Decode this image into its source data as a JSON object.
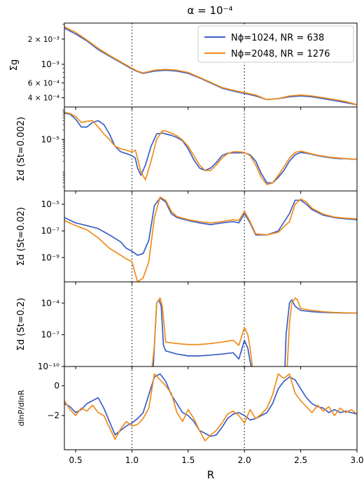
{
  "chart_data": {
    "type": "line",
    "title": "α = 10⁻⁴",
    "xlabel": "R",
    "xlim": [
      0.4,
      3.0
    ],
    "x_ticks": [
      0.5,
      1.0,
      1.5,
      2.0,
      2.5,
      3.0
    ],
    "x_tick_labels": [
      "0.5",
      "1.0",
      "1.5",
      "2.0",
      "2.5",
      "3.0"
    ],
    "vertical_lines": [
      1.0,
      2.0
    ],
    "legend": {
      "placement": "top-right",
      "entries": [
        "Nϕ=1024, NR = 638",
        "Nϕ=2048, NR = 1276"
      ],
      "colors": [
        "#3a5ec8",
        "#f08c1a"
      ]
    },
    "panels": [
      {
        "ylabel": "Σg",
        "yscale": "log",
        "ylim": [
          0.00031,
          0.0031
        ],
        "y_ticks": [
          0.0004,
          0.0006,
          0.001,
          0.002
        ],
        "y_tick_labels": [
          "4 × 10⁻⁴",
          "6 × 10⁻⁴",
          "10⁻³",
          "2 × 10⁻³"
        ],
        "series": [
          {
            "x": [
              0.4,
              0.5,
              0.6,
              0.7,
              0.8,
              0.9,
              1.0,
              1.05,
              1.1,
              1.2,
              1.3,
              1.4,
              1.5,
              1.6,
              1.7,
              1.8,
              1.9,
              2.0,
              2.1,
              2.2,
              2.3,
              2.4,
              2.5,
              2.6,
              2.7,
              2.8,
              2.9,
              3.0
            ],
            "y": [
              0.0027,
              0.0023,
              0.0019,
              0.0015,
              0.00125,
              0.00105,
              0.00088,
              0.00082,
              0.00078,
              0.00083,
              0.00085,
              0.00083,
              0.00078,
              0.00069,
              0.0006,
              0.00052,
              0.00048,
              0.00045,
              0.00042,
              0.00038,
              0.00039,
              0.00041,
              0.00042,
              0.00041,
              0.00039,
              0.00037,
              0.00035,
              0.00033
            ]
          },
          {
            "x": [
              0.4,
              0.5,
              0.6,
              0.7,
              0.8,
              0.9,
              1.0,
              1.05,
              1.1,
              1.2,
              1.3,
              1.4,
              1.5,
              1.6,
              1.7,
              1.8,
              1.9,
              2.0,
              2.1,
              2.2,
              2.3,
              2.4,
              2.5,
              2.6,
              2.7,
              2.8,
              2.9,
              3.0
            ],
            "y": [
              0.0028,
              0.0024,
              0.00195,
              0.00155,
              0.00128,
              0.00107,
              0.0009,
              0.00083,
              0.00079,
              0.00085,
              0.00087,
              0.00085,
              0.0008,
              0.0007,
              0.00061,
              0.00053,
              0.00049,
              0.00046,
              0.00043,
              0.00038,
              0.00039,
              0.00042,
              0.00043,
              0.00042,
              0.0004,
              0.00038,
              0.00036,
              0.00033
            ]
          }
        ]
      },
      {
        "ylabel": "Σd (St=0.002)",
        "yscale": "log",
        "ylim": [
          2.2e-07,
          0.00011
        ],
        "y_ticks": [
          1e-05
        ],
        "y_tick_labels": [
          "10⁻⁵"
        ],
        "series": [
          {
            "x": [
              0.4,
              0.45,
              0.5,
              0.55,
              0.6,
              0.65,
              0.7,
              0.75,
              0.8,
              0.85,
              0.9,
              0.95,
              1.0,
              1.03,
              1.05,
              1.08,
              1.12,
              1.17,
              1.22,
              1.27,
              1.3,
              1.35,
              1.4,
              1.45,
              1.5,
              1.55,
              1.6,
              1.65,
              1.7,
              1.75,
              1.8,
              1.85,
              1.9,
              1.95,
              2.0,
              2.05,
              2.1,
              2.15,
              2.2,
              2.25,
              2.3,
              2.35,
              2.4,
              2.45,
              2.5,
              2.55,
              2.6,
              2.65,
              2.7,
              2.75,
              2.8,
              2.85,
              2.9,
              2.95,
              3.0
            ],
            "y": [
              7e-05,
              6.5e-05,
              4.5e-05,
              2.5e-05,
              2.5e-05,
              3.5e-05,
              4e-05,
              3e-05,
              1.5e-05,
              6e-06,
              4e-06,
              3.5e-06,
              3e-06,
              2.5e-06,
              1.2e-06,
              7e-07,
              1.5e-06,
              6e-06,
              1.5e-05,
              1.6e-05,
              1.5e-05,
              1.35e-05,
              1.15e-05,
              9e-06,
              5e-06,
              2.2e-06,
              1.2e-06,
              1e-06,
              1.2e-06,
              1.8e-06,
              3e-06,
              3.6e-06,
              3.7e-06,
              3.7e-06,
              3.7e-06,
              3.2e-06,
              2e-06,
              8e-07,
              4e-07,
              4e-07,
              6e-07,
              1e-06,
              2e-06,
              3.2e-06,
              3.8e-06,
              3.6e-06,
              3.3e-06,
              3e-06,
              2.8e-06,
              2.6e-06,
              2.5e-06,
              2.4e-06,
              2.4e-06,
              2.3e-06,
              2.3e-06
            ]
          },
          {
            "x": [
              0.4,
              0.45,
              0.5,
              0.55,
              0.6,
              0.65,
              0.7,
              0.75,
              0.8,
              0.85,
              0.9,
              0.95,
              1.0,
              1.03,
              1.05,
              1.08,
              1.12,
              1.17,
              1.22,
              1.27,
              1.3,
              1.35,
              1.4,
              1.45,
              1.5,
              1.55,
              1.6,
              1.65,
              1.7,
              1.75,
              1.8,
              1.85,
              1.9,
              1.95,
              2.0,
              2.05,
              2.1,
              2.15,
              2.2,
              2.25,
              2.3,
              2.35,
              2.4,
              2.45,
              2.5,
              2.55,
              2.6,
              2.65,
              2.7,
              2.75,
              2.8,
              2.85,
              2.9,
              2.95,
              3.0
            ],
            "y": [
              7.5e-05,
              6.8e-05,
              5.5e-05,
              3.5e-05,
              3.8e-05,
              4e-05,
              2.5e-05,
              1.5e-05,
              1e-05,
              6e-06,
              5e-06,
              4.5e-06,
              4e-06,
              4.5e-06,
              2.5e-06,
              9e-07,
              5e-07,
              2e-06,
              1e-05,
              1.9e-05,
              1.85e-05,
              1.6e-05,
              1.3e-05,
              9.5e-06,
              6e-06,
              3e-06,
              1.5e-06,
              1e-06,
              1e-06,
              1.5e-06,
              2.5e-06,
              3.5e-06,
              4e-06,
              4e-06,
              3.8e-06,
              3e-06,
              1.5e-06,
              6e-07,
              3.5e-07,
              4e-07,
              7e-07,
              1.3e-06,
              2.5e-06,
              3.8e-06,
              4.2e-06,
              3.8e-06,
              3.4e-06,
              3.1e-06,
              2.9e-06,
              2.7e-06,
              2.6e-06,
              2.5e-06,
              2.4e-06,
              2.35e-06,
              2.3e-06
            ]
          }
        ]
      },
      {
        "ylabel": "Σd (St=0.02)",
        "yscale": "log",
        "ylim": [
          1.5e-11,
          0.0001
        ],
        "y_ticks": [
          1e-09,
          1e-07,
          1e-05
        ],
        "y_tick_labels": [
          "10⁻⁹",
          "10⁻⁷",
          "10⁻⁵"
        ],
        "series": [
          {
            "x": [
              0.4,
              0.5,
              0.6,
              0.7,
              0.8,
              0.9,
              0.95,
              1.0,
              1.05,
              1.1,
              1.15,
              1.2,
              1.25,
              1.3,
              1.35,
              1.4,
              1.5,
              1.6,
              1.7,
              1.8,
              1.9,
              1.95,
              2.0,
              2.05,
              2.1,
              2.2,
              2.3,
              2.4,
              2.45,
              2.5,
              2.55,
              2.6,
              2.7,
              2.8,
              2.9,
              3.0
            ],
            "y": [
              1e-06,
              4e-07,
              2.5e-07,
              1.5e-07,
              5e-08,
              1.5e-08,
              5e-09,
              3e-09,
              1.5e-09,
              2e-09,
              2e-08,
              8e-06,
              3e-05,
              1.5e-05,
              2e-06,
              1e-06,
              6e-07,
              4e-07,
              3e-07,
              4e-07,
              5e-07,
              4e-07,
              2e-06,
              4e-07,
              5e-08,
              5e-08,
              1e-07,
              2e-06,
              2e-05,
              2e-05,
              1e-05,
              4e-06,
              1.5e-06,
              1e-06,
              8e-07,
              7e-07
            ]
          },
          {
            "x": [
              0.4,
              0.5,
              0.6,
              0.7,
              0.8,
              0.9,
              0.95,
              1.0,
              1.05,
              1.1,
              1.15,
              1.2,
              1.25,
              1.3,
              1.35,
              1.4,
              1.5,
              1.6,
              1.7,
              1.8,
              1.9,
              1.95,
              2.0,
              2.05,
              2.1,
              2.2,
              2.3,
              2.4,
              2.45,
              2.5,
              2.55,
              2.6,
              2.7,
              2.8,
              2.9,
              3.0
            ],
            "y": [
              6e-07,
              2.5e-07,
              1.2e-07,
              3e-08,
              5e-09,
              1.5e-09,
              8e-10,
              5e-10,
              1.5e-11,
              3e-11,
              5e-10,
              1e-06,
              3.5e-05,
              2e-05,
              3e-06,
              1.2e-06,
              7e-07,
              5e-07,
              4e-07,
              5e-07,
              7e-07,
              6e-07,
              3e-06,
              5e-07,
              6e-08,
              5e-08,
              8e-08,
              5e-07,
              1e-05,
              2.5e-05,
              1.5e-05,
              5e-06,
              1.8e-06,
              1.1e-06,
              9e-07,
              8e-07
            ]
          }
        ]
      },
      {
        "ylabel": "Σd (St=0.2)",
        "yscale": "log",
        "ylim": [
          1e-10,
          0.01
        ],
        "y_ticks": [
          1e-10,
          1e-07,
          0.0001
        ],
        "y_tick_labels": [
          "10⁻¹⁰",
          "10⁻⁷",
          "10⁻⁴"
        ],
        "series": [
          {
            "x": [
              1.19,
              1.2,
              1.22,
              1.24,
              1.26,
              1.28,
              1.3,
              1.4,
              1.5,
              1.6,
              1.7,
              1.8,
              1.9,
              1.95,
              2.0,
              2.03,
              2.05,
              2.06
            ],
            "y": [
              1e-10,
              1e-08,
              0.0001,
              0.0002,
              5e-05,
              1e-08,
              3e-09,
              1.5e-09,
              1e-09,
              1e-09,
              1.2e-09,
              1.5e-09,
              2e-09,
              5e-10,
              3e-08,
              5e-09,
              3e-10,
              1e-10
            ]
          },
          {
            "x": [
              2.36,
              2.37,
              2.4,
              2.42,
              2.45,
              2.5,
              2.6,
              2.7,
              2.8,
              2.9,
              3.0
            ],
            "y": [
              1e-10,
              1e-07,
              0.0001,
              0.0002,
              5e-05,
              2e-05,
              1.5e-05,
              1.3e-05,
              1.2e-05,
              1.15e-05,
              1.1e-05
            ]
          },
          {
            "x": [
              1.18,
              1.2,
              1.22,
              1.25,
              1.27,
              1.3,
              1.4,
              1.5,
              1.6,
              1.7,
              1.8,
              1.9,
              1.95,
              2.0,
              2.03,
              2.05,
              2.07
            ],
            "y": [
              1e-10,
              1e-08,
              0.0001,
              0.0003,
              5e-05,
              2e-08,
              1.5e-08,
              1.2e-08,
              1.2e-08,
              1.5e-08,
              2e-08,
              3e-08,
              1e-08,
              5e-07,
              1e-07,
              5e-09,
              1e-10
            ]
          },
          {
            "x": [
              2.38,
              2.4,
              2.42,
              2.45,
              2.47,
              2.5,
              2.6,
              2.7,
              2.8,
              2.9,
              3.0
            ],
            "y": [
              1e-10,
              1e-06,
              0.0001,
              0.0003,
              0.0002,
              3e-05,
              2e-05,
              1.5e-05,
              1.3e-05,
              1.2e-05,
              1.1e-05
            ]
          }
        ]
      },
      {
        "ylabel": "dlnP/dlnR",
        "yscale": "linear",
        "ylim": [
          -4.3,
          1.3
        ],
        "y_ticks": [
          -2,
          0
        ],
        "y_tick_labels": [
          "−2",
          "0"
        ],
        "series": [
          {
            "x": [
              0.4,
              0.45,
              0.5,
              0.55,
              0.6,
              0.65,
              0.7,
              0.75,
              0.8,
              0.85,
              0.9,
              0.95,
              1.0,
              1.05,
              1.1,
              1.15,
              1.2,
              1.25,
              1.3,
              1.35,
              1.4,
              1.45,
              1.5,
              1.55,
              1.6,
              1.65,
              1.7,
              1.75,
              1.8,
              1.85,
              1.9,
              1.95,
              2.0,
              2.05,
              2.1,
              2.15,
              2.2,
              2.25,
              2.3,
              2.35,
              2.4,
              2.45,
              2.5,
              2.55,
              2.6,
              2.65,
              2.7,
              2.75,
              2.8,
              2.85,
              2.9,
              2.95,
              3.0
            ],
            "y": [
              -1.2,
              -1.4,
              -1.8,
              -1.6,
              -1.2,
              -1.0,
              -0.8,
              -1.5,
              -2.4,
              -3.3,
              -3.0,
              -2.7,
              -2.5,
              -2.2,
              -1.8,
              -0.6,
              0.6,
              0.8,
              0.3,
              -0.6,
              -1.2,
              -1.8,
              -2.0,
              -2.4,
              -3.0,
              -3.2,
              -3.4,
              -3.3,
              -2.8,
              -2.2,
              -1.9,
              -1.8,
              -2.0,
              -2.3,
              -2.2,
              -2.0,
              -1.8,
              -1.2,
              -0.2,
              0.3,
              0.6,
              0.4,
              -0.2,
              -0.8,
              -1.2,
              -1.4,
              -1.5,
              -1.8,
              -1.6,
              -1.8,
              -1.7,
              -1.8,
              -1.9
            ]
          },
          {
            "x": [
              0.4,
              0.45,
              0.5,
              0.55,
              0.6,
              0.65,
              0.7,
              0.75,
              0.8,
              0.85,
              0.9,
              0.95,
              1.0,
              1.05,
              1.1,
              1.15,
              1.2,
              1.25,
              1.3,
              1.35,
              1.4,
              1.45,
              1.5,
              1.55,
              1.6,
              1.65,
              1.7,
              1.75,
              1.8,
              1.85,
              1.9,
              1.95,
              2.0,
              2.05,
              2.1,
              2.15,
              2.2,
              2.25,
              2.3,
              2.35,
              2.4,
              2.45,
              2.5,
              2.55,
              2.6,
              2.65,
              2.7,
              2.75,
              2.8,
              2.85,
              2.9,
              2.95,
              3.0
            ],
            "y": [
              -1.0,
              -1.6,
              -2.0,
              -1.5,
              -1.7,
              -1.3,
              -1.8,
              -2.0,
              -2.8,
              -3.6,
              -2.9,
              -2.4,
              -2.7,
              -2.6,
              -2.2,
              -1.5,
              0.8,
              0.4,
              0.0,
              -0.5,
              -1.8,
              -2.4,
              -1.6,
              -2.2,
              -3.0,
              -3.7,
              -3.3,
              -3.0,
              -2.5,
              -1.9,
              -1.7,
              -2.0,
              -2.5,
              -1.6,
              -2.2,
              -1.9,
              -1.5,
              -0.6,
              0.8,
              0.5,
              0.8,
              -0.5,
              -1.0,
              -1.4,
              -1.8,
              -1.3,
              -1.7,
              -1.4,
              -2.0,
              -1.5,
              -1.8,
              -1.6,
              -1.9
            ]
          }
        ]
      }
    ]
  }
}
